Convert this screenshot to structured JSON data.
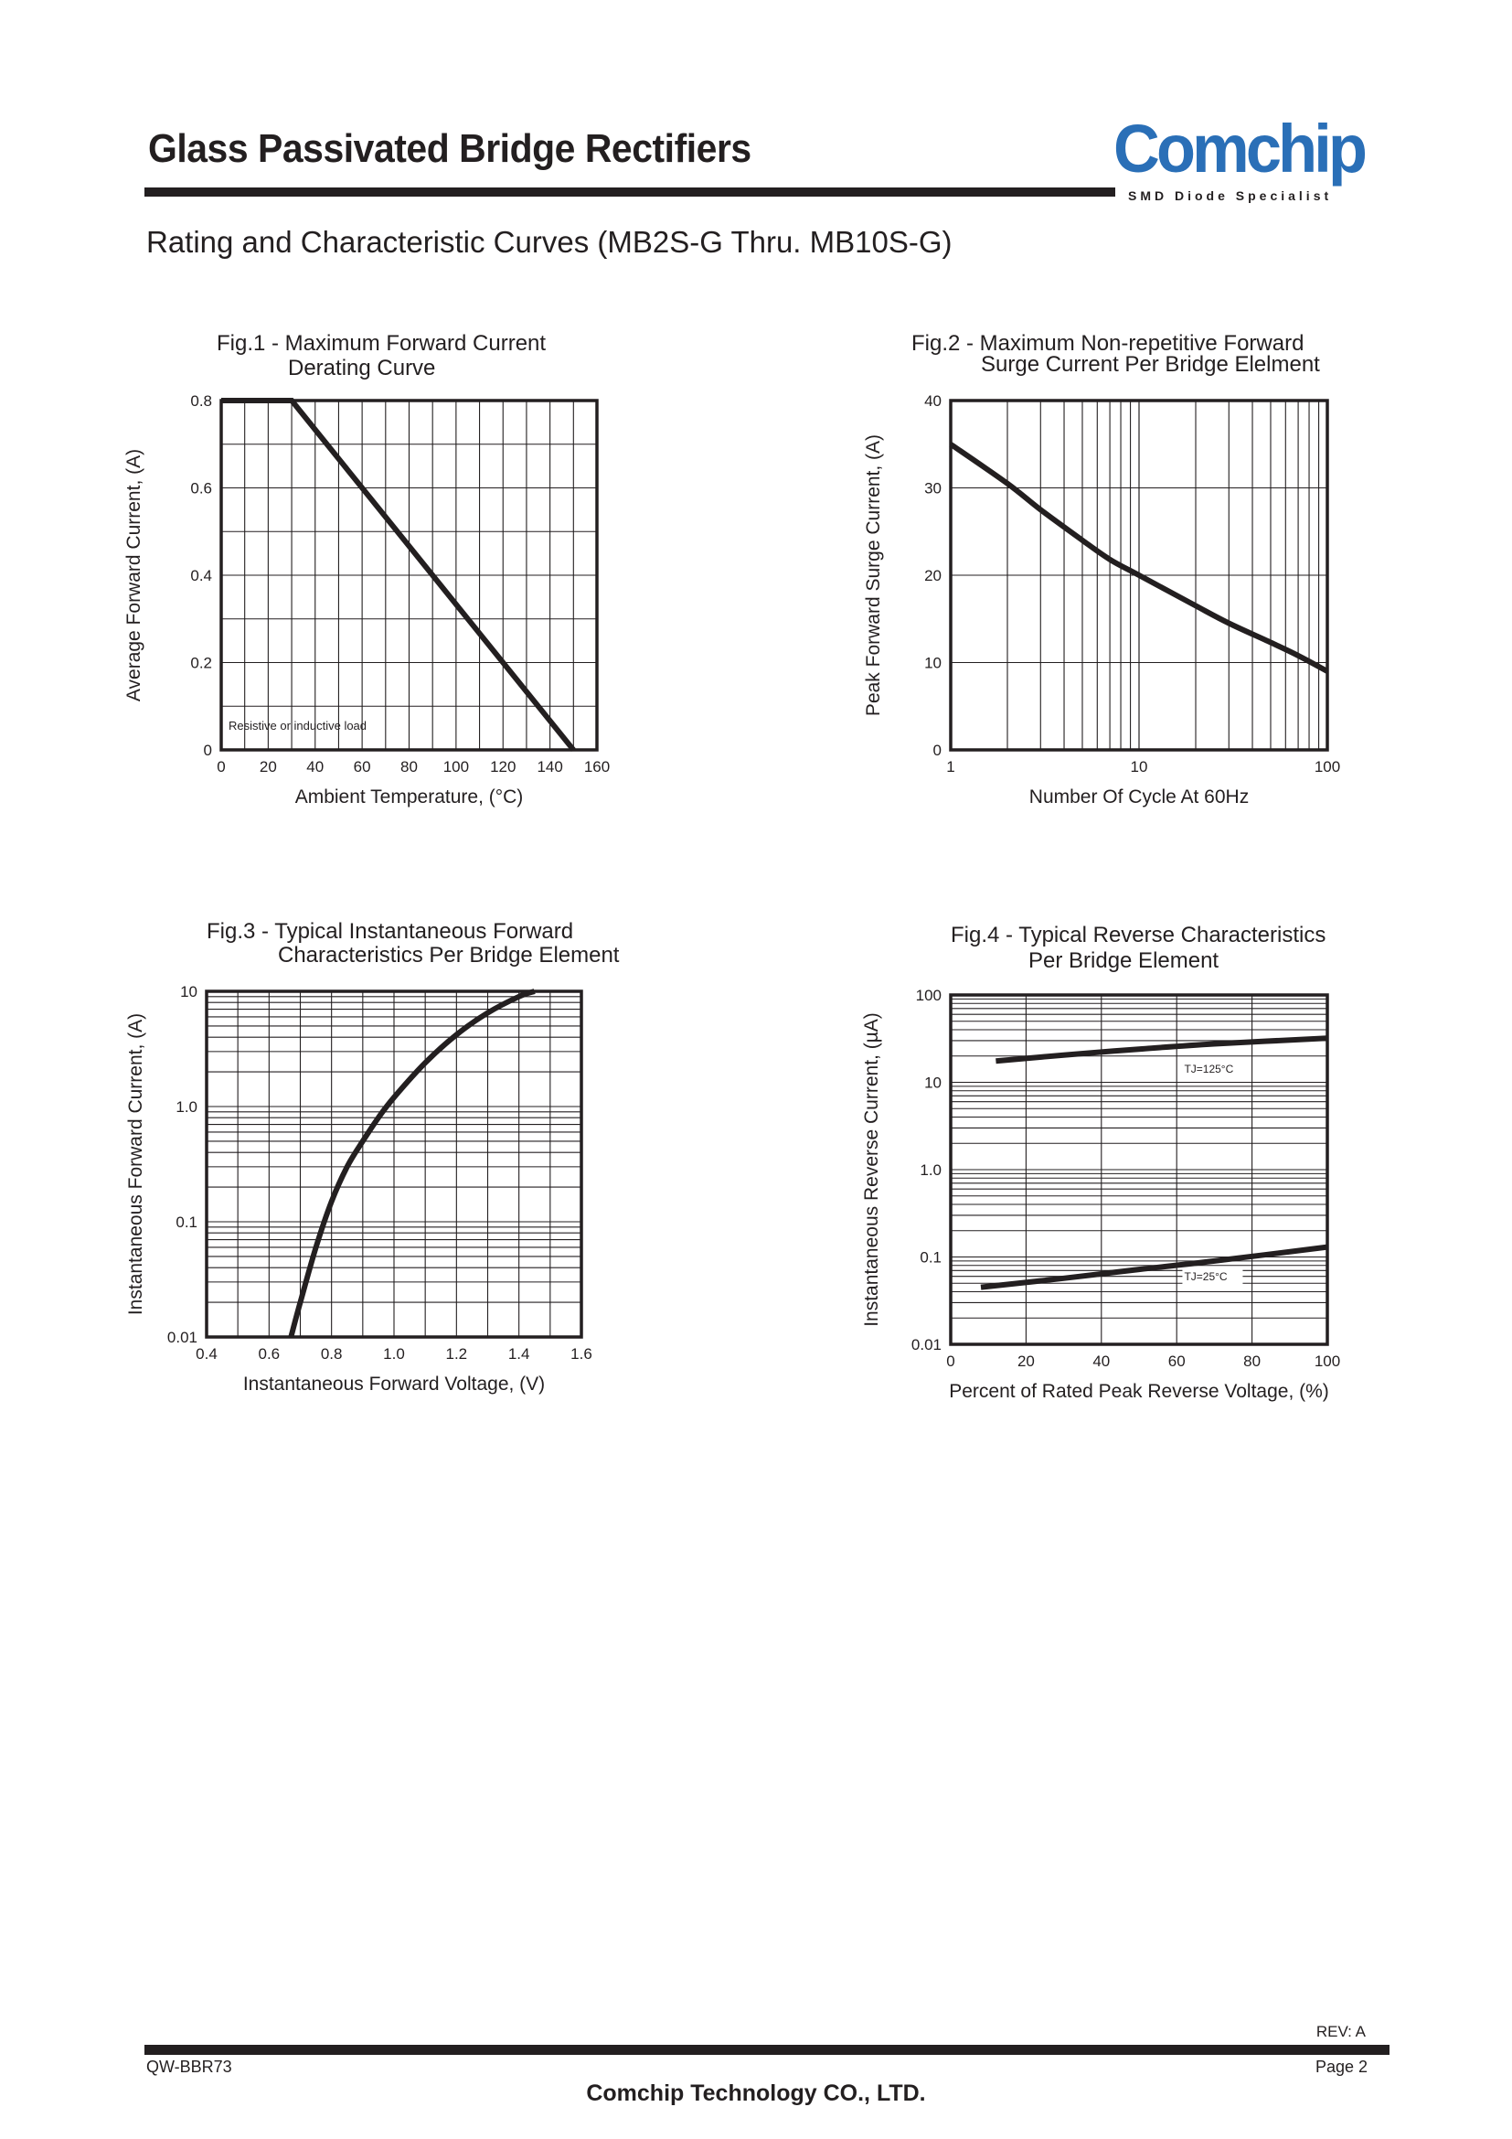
{
  "header": {
    "title": "Glass Passivated Bridge Rectifiers",
    "logo_text": "Comchip",
    "logo_tagline": "SMD Diode Specialist",
    "logo_color": "#2a6fb7"
  },
  "subtitle": "Rating and Characteristic Curves (MB2S-G Thru. MB10S-G)",
  "footer": {
    "rev": "REV: A",
    "doc_code": "QW-BBR73",
    "page": "Page 2",
    "company": "Comchip Technology CO., LTD."
  },
  "chart_data": [
    {
      "id": "fig1",
      "type": "line",
      "title_lines": [
        "Fig.1 - Maximum Forward Current",
        "Derating Curve"
      ],
      "xlabel": "Ambient Temperature, (°C)",
      "ylabel": "Average Forward Current, (A)",
      "xlim": [
        0,
        160
      ],
      "ylim": [
        0,
        0.8
      ],
      "x_ticks": [
        "0",
        "20",
        "40",
        "60",
        "80",
        "100",
        "120",
        "140",
        "160"
      ],
      "y_ticks": [
        "0",
        "0.2",
        "0.4",
        "0.6",
        "0.8"
      ],
      "grid": true,
      "annotation": "Resistive or inductive load",
      "series": [
        {
          "x": [
            0,
            30,
            150
          ],
          "y": [
            0.8,
            0.8,
            0
          ]
        }
      ]
    },
    {
      "id": "fig2",
      "type": "line",
      "title_lines": [
        "Fig.2 - Maximum Non-repetitive Forward",
        "Surge Current Per Bridge Elelment"
      ],
      "xlabel": "Number Of Cycle At 60Hz",
      "ylabel": "Peak Forward Surge Current, (A)",
      "x_scale": "log",
      "xlim": [
        1,
        100
      ],
      "ylim": [
        0,
        40
      ],
      "x_ticks": [
        "1",
        "10",
        "100"
      ],
      "y_ticks": [
        "0",
        "10",
        "20",
        "30",
        "40"
      ],
      "grid": true,
      "series": [
        {
          "x": [
            1,
            2,
            3,
            5,
            7,
            10,
            20,
            30,
            50,
            70,
            100
          ],
          "y": [
            35,
            30.5,
            27.5,
            24,
            21.8,
            20,
            16.5,
            14.5,
            12.3,
            10.8,
            9
          ]
        }
      ]
    },
    {
      "id": "fig3",
      "type": "line",
      "title_lines": [
        "Fig.3 - Typical Instantaneous Forward",
        "Characteristics Per Bridge Element"
      ],
      "xlabel": "Instantaneous Forward Voltage, (V)",
      "ylabel": "Instantaneous Forward Current, (A)",
      "y_scale": "log",
      "xlim": [
        0.4,
        1.6
      ],
      "ylim": [
        0.01,
        10
      ],
      "x_ticks": [
        "0.4",
        "0.6",
        "0.8",
        "1.0",
        "1.2",
        "1.4",
        "1.6"
      ],
      "y_ticks": [
        "0.01",
        "0.1",
        "1.0",
        "10"
      ],
      "grid": true,
      "series": [
        {
          "x": [
            0.67,
            0.7,
            0.75,
            0.8,
            0.85,
            0.9,
            0.95,
            1.0,
            1.1,
            1.2,
            1.3,
            1.4,
            1.45
          ],
          "y": [
            0.01,
            0.02,
            0.06,
            0.15,
            0.3,
            0.5,
            0.8,
            1.2,
            2.4,
            4.2,
            6.5,
            9,
            10
          ]
        }
      ]
    },
    {
      "id": "fig4",
      "type": "line",
      "title_lines": [
        "Fig.4 - Typical Reverse Characteristics",
        "Per Bridge Element"
      ],
      "xlabel": "Percent of Rated Peak Reverse Voltage, (%)",
      "ylabel": "Instantaneous Reverse Current, (µA)",
      "y_scale": "log",
      "xlim": [
        0,
        100
      ],
      "ylim": [
        0.01,
        100
      ],
      "x_ticks": [
        "0",
        "20",
        "40",
        "60",
        "80",
        "100"
      ],
      "y_ticks": [
        "0.01",
        "0.1",
        "1.0",
        "10",
        "100"
      ],
      "grid": true,
      "series": [
        {
          "name": "TJ=125°C",
          "x": [
            12,
            30,
            50,
            70,
            100
          ],
          "y": [
            17.5,
            20.5,
            24,
            27.5,
            32
          ]
        },
        {
          "name": "TJ=25°C",
          "x": [
            8,
            30,
            50,
            70,
            100
          ],
          "y": [
            0.045,
            0.057,
            0.072,
            0.09,
            0.13
          ]
        }
      ]
    }
  ]
}
